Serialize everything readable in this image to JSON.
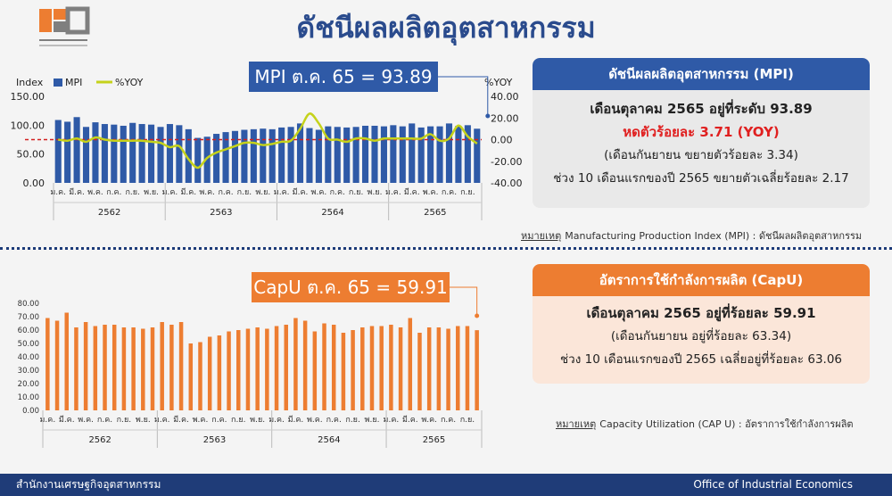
{
  "title": "ดัชนีผลผลิตอุตสาหกรรม",
  "mpi_callout": "MPI ต.ค. 65 = 93.89",
  "capu_callout": "CapU ต.ค. 65 = 59.91",
  "mpi_panel": {
    "header": "ดัชนีผลผลิตอุตสาหกรรม (MPI)",
    "line1": "เดือนตุลาคม 2565 อยู่ที่ระดับ 93.89",
    "line2": "หดตัวร้อยละ 3.71  (YOY)",
    "line3": "(เดือนกันยายน ขยายตัวร้อยละ 3.34)",
    "line4": "ช่วง 10 เดือนแรกของปี 2565 ขยายตัวเฉลี่ยร้อยละ 2.17"
  },
  "mpi_note": {
    "label": "หมายเหตุ",
    "text": "Manufacturing Production Index (MPI) : ดัชนีผลผลิตอุตสาหกรรม"
  },
  "capu_panel": {
    "header": "อัตราการใช้กำลังการผลิต (CapU)",
    "line1": "เดือนตุลาคม 2565 อยู่ที่ร้อยละ 59.91",
    "line2": "(เดือนกันยายน อยู่ที่ร้อยละ 63.34)",
    "line3": "ช่วง 10 เดือนแรกของปี 2565 เฉลี่ยอยู่ที่ร้อยละ 63.06"
  },
  "capu_note": {
    "label": "หมายเหตุ",
    "text": "Capacity Utilization (CAP U) : อัตราการใช้กำลังการผลิต"
  },
  "footer": {
    "left": "สำนักงานเศรษฐกิจอุตสาหกรรม",
    "right": "Office of Industrial Economics"
  },
  "colors": {
    "mpi_bar": "#2f5aa7",
    "yoy_line": "#c5d21b",
    "capu_bar": "#ed7d31",
    "zero_line": "#d22020"
  },
  "chart_data": [
    {
      "type": "bar",
      "ylabel": "Index",
      "y2label": "%YOY",
      "legend": [
        "MPI",
        "%YOY"
      ],
      "legend_position": "top-left",
      "ylim": [
        0,
        150
      ],
      "yticks": [
        "0.00",
        "50.00",
        "100.00",
        "150.00"
      ],
      "y2lim": [
        -40,
        40
      ],
      "y2ticks": [
        "-40.00",
        "-20.00",
        "0.00",
        "20.00",
        "40.00"
      ],
      "month_labels": [
        "ม.ค.",
        "มี.ค.",
        "พ.ค.",
        "ก.ค.",
        "ก.ย.",
        "พ.ย."
      ],
      "last_year_month_labels": [
        "ม.ค.",
        "มี.ค.",
        "พ.ค.",
        "ก.ค.",
        "ก.ย."
      ],
      "years": [
        "2562",
        "2563",
        "2564",
        "2565"
      ],
      "series": [
        {
          "name": "MPI",
          "type": "bar",
          "values": [
            109,
            106,
            114,
            97,
            105,
            102,
            101,
            99,
            104,
            102,
            101,
            97,
            102,
            100,
            93,
            78,
            80,
            85,
            88,
            90,
            92,
            93,
            94,
            93,
            96,
            97,
            103,
            95,
            92,
            98,
            97,
            96,
            97,
            99,
            99,
            98,
            100,
            98,
            103,
            96,
            98,
            98,
            103,
            99,
            100,
            93.89
          ]
        },
        {
          "name": "%YOY",
          "type": "line",
          "values": [
            0,
            -1,
            1,
            -2,
            2,
            0,
            -1,
            -1,
            -1,
            -1,
            -2,
            -3,
            -7,
            -6,
            -18,
            -26,
            -17,
            -12,
            -9,
            -6,
            -3,
            -3,
            -5,
            -4,
            -2,
            -1,
            10,
            24,
            15,
            1,
            0,
            -2,
            1,
            1,
            -1,
            1,
            1,
            1,
            1,
            1,
            5,
            -1,
            1,
            13,
            3,
            -3.71
          ]
        }
      ]
    },
    {
      "type": "bar",
      "ylim": [
        0,
        80
      ],
      "yticks": [
        "0.00",
        "10.00",
        "20.00",
        "30.00",
        "40.00",
        "50.00",
        "60.00",
        "70.00",
        "80.00"
      ],
      "month_labels": [
        "ม.ค.",
        "มี.ค.",
        "พ.ค.",
        "ก.ค.",
        "ก.ย.",
        "พ.ย."
      ],
      "last_year_month_labels": [
        "ม.ค.",
        "มี.ค.",
        "พ.ค.",
        "ก.ค.",
        "ก.ย."
      ],
      "years": [
        "2562",
        "2563",
        "2564",
        "2565"
      ],
      "series": [
        {
          "name": "CapU",
          "values": [
            69,
            67,
            73,
            62,
            66,
            63,
            64,
            64,
            62,
            62,
            61,
            62,
            66,
            64,
            66,
            50,
            51,
            55,
            56,
            59,
            60,
            61,
            62,
            61,
            63,
            64,
            69,
            67,
            59,
            65,
            64,
            58,
            60,
            62,
            63,
            63,
            64,
            62,
            69,
            58,
            62,
            62,
            61,
            63,
            63,
            59.91
          ]
        }
      ]
    }
  ]
}
